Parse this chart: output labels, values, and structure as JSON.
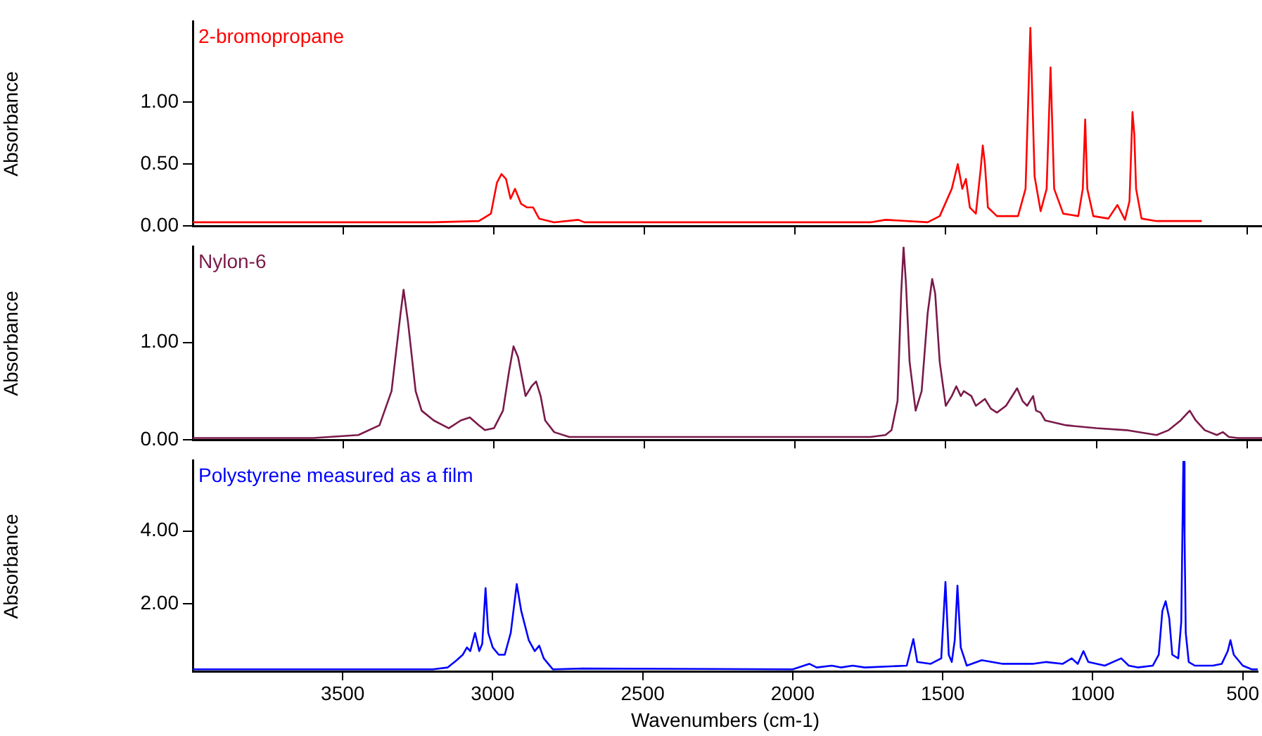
{
  "chart_data": [
    {
      "type": "line",
      "ylabel": "Absorbance",
      "xlim": [
        4000,
        450
      ],
      "xticks": [
        3500,
        3000,
        2500,
        2000,
        1500,
        1000,
        500
      ],
      "ylim": [
        0,
        1.65
      ],
      "yticks": [
        {
          "value": 0,
          "label": "0.00"
        },
        {
          "value": 0.5,
          "label": "0.50"
        },
        {
          "value": 1,
          "label": "1.00"
        }
      ],
      "tick_labels": "y",
      "grid": false,
      "legend": false,
      "marker": "none",
      "line_style": "solid",
      "series": [
        {
          "name": "2-bromopropane",
          "color": "#ff0000",
          "x": [
            4000,
            3200,
            3050,
            3010,
            2990,
            2975,
            2960,
            2945,
            2930,
            2910,
            2890,
            2870,
            2850,
            2800,
            2720,
            2700,
            2000,
            1750,
            1700,
            1560,
            1520,
            1480,
            1460,
            1445,
            1433,
            1420,
            1400,
            1384,
            1377,
            1370,
            1360,
            1330,
            1260,
            1235,
            1219,
            1205,
            1185,
            1165,
            1152,
            1140,
            1110,
            1060,
            1045,
            1037,
            1030,
            1010,
            960,
            930,
            905,
            890,
            880,
            874,
            868,
            850,
            800,
            700,
            650
          ],
          "values": [
            0.03,
            0.03,
            0.04,
            0.1,
            0.35,
            0.42,
            0.38,
            0.22,
            0.3,
            0.18,
            0.15,
            0.15,
            0.06,
            0.03,
            0.05,
            0.03,
            0.03,
            0.03,
            0.05,
            0.03,
            0.08,
            0.3,
            0.5,
            0.3,
            0.38,
            0.15,
            0.1,
            0.46,
            0.65,
            0.5,
            0.15,
            0.08,
            0.08,
            0.3,
            1.6,
            0.4,
            0.12,
            0.3,
            1.28,
            0.3,
            0.1,
            0.08,
            0.3,
            0.86,
            0.3,
            0.08,
            0.06,
            0.17,
            0.05,
            0.2,
            0.92,
            0.74,
            0.3,
            0.06,
            0.04,
            0.04,
            0.04
          ]
        }
      ]
    },
    {
      "type": "line",
      "ylabel": "Absorbance",
      "xlim": [
        4000,
        450
      ],
      "xticks": [
        3500,
        3000,
        2500,
        2000,
        1500,
        1000,
        500
      ],
      "ylim": [
        0,
        1.98
      ],
      "yticks": [
        {
          "value": 0,
          "label": "0.00"
        },
        {
          "value": 1,
          "label": "1.00"
        }
      ],
      "tick_labels": "y",
      "grid": false,
      "legend": false,
      "marker": "none",
      "line_style": "solid",
      "series": [
        {
          "name": "Nylon-6",
          "color": "#7a1a4a",
          "x": [
            4000,
            3600,
            3450,
            3380,
            3340,
            3310,
            3300,
            3285,
            3260,
            3240,
            3200,
            3150,
            3110,
            3080,
            3050,
            3030,
            3000,
            2970,
            2950,
            2935,
            2920,
            2895,
            2875,
            2860,
            2845,
            2830,
            2800,
            2750,
            2400,
            1750,
            1700,
            1680,
            1660,
            1648,
            1640,
            1632,
            1620,
            1600,
            1580,
            1560,
            1545,
            1535,
            1520,
            1500,
            1480,
            1465,
            1450,
            1440,
            1415,
            1400,
            1370,
            1350,
            1330,
            1300,
            1263,
            1245,
            1230,
            1210,
            1200,
            1185,
            1170,
            1100,
            1000,
            900,
            800,
            760,
            720,
            690,
            670,
            640,
            600,
            580,
            560,
            530,
            450
          ],
          "values": [
            0.02,
            0.02,
            0.05,
            0.15,
            0.5,
            1.3,
            1.54,
            1.2,
            0.5,
            0.3,
            0.2,
            0.12,
            0.2,
            0.23,
            0.15,
            0.1,
            0.12,
            0.3,
            0.7,
            0.96,
            0.85,
            0.45,
            0.55,
            0.6,
            0.45,
            0.2,
            0.08,
            0.03,
            0.03,
            0.03,
            0.05,
            0.1,
            0.4,
            1.5,
            1.98,
            1.6,
            0.8,
            0.3,
            0.5,
            1.3,
            1.65,
            1.5,
            0.8,
            0.35,
            0.45,
            0.55,
            0.45,
            0.5,
            0.45,
            0.35,
            0.42,
            0.32,
            0.28,
            0.35,
            0.53,
            0.4,
            0.35,
            0.45,
            0.3,
            0.28,
            0.2,
            0.15,
            0.12,
            0.1,
            0.05,
            0.1,
            0.2,
            0.3,
            0.2,
            0.1,
            0.05,
            0.08,
            0.03,
            0.02,
            0.02
          ]
        }
      ]
    },
    {
      "type": "line",
      "xlabel": "Wavenumbers (cm-1)",
      "ylabel": "Absorbance",
      "xlim": [
        4000,
        450
      ],
      "xticks": [
        3500,
        3000,
        2500,
        2000,
        1500,
        1000,
        500
      ],
      "ylim": [
        0.13,
        5.93
      ],
      "yticks": [
        {
          "value": 2,
          "label": "2.00"
        },
        {
          "value": 4,
          "label": "4.00"
        }
      ],
      "grid": false,
      "legend": false,
      "marker": "none",
      "line_style": "solid",
      "series": [
        {
          "name": "Polystyrene measured as a film",
          "color": "#0000ff",
          "x": [
            4000,
            3200,
            3150,
            3120,
            3100,
            3086,
            3075,
            3059,
            3045,
            3035,
            3024,
            3015,
            3000,
            2980,
            2960,
            2940,
            2920,
            2905,
            2880,
            2860,
            2845,
            2830,
            2800,
            2700,
            2000,
            1945,
            1920,
            1870,
            1840,
            1800,
            1760,
            1620,
            1598,
            1585,
            1540,
            1505,
            1491,
            1480,
            1470,
            1460,
            1451,
            1440,
            1420,
            1370,
            1300,
            1200,
            1155,
            1100,
            1070,
            1050,
            1031,
            1015,
            960,
            905,
            880,
            850,
            800,
            780,
            768,
            757,
            745,
            735,
            715,
            705,
            698,
            694,
            690,
            680,
            660,
            600,
            570,
            550,
            541,
            530,
            500,
            470,
            450
          ],
          "values": [
            0.2,
            0.2,
            0.25,
            0.45,
            0.6,
            0.8,
            0.7,
            1.2,
            0.7,
            0.9,
            2.43,
            1.2,
            0.8,
            0.6,
            0.6,
            1.2,
            2.54,
            1.8,
            1.0,
            0.7,
            0.85,
            0.5,
            0.2,
            0.22,
            0.2,
            0.35,
            0.25,
            0.3,
            0.25,
            0.3,
            0.25,
            0.3,
            1.03,
            0.4,
            0.35,
            0.5,
            2.6,
            0.6,
            0.4,
            1.0,
            2.5,
            0.8,
            0.3,
            0.45,
            0.35,
            0.35,
            0.4,
            0.35,
            0.5,
            0.35,
            0.7,
            0.4,
            0.3,
            0.5,
            0.3,
            0.25,
            0.3,
            0.6,
            1.8,
            2.07,
            1.6,
            0.6,
            0.5,
            1.5,
            5.9,
            3.9,
            1.2,
            0.4,
            0.3,
            0.3,
            0.35,
            0.7,
            1.0,
            0.6,
            0.3,
            0.2,
            0.2
          ]
        }
      ]
    }
  ]
}
